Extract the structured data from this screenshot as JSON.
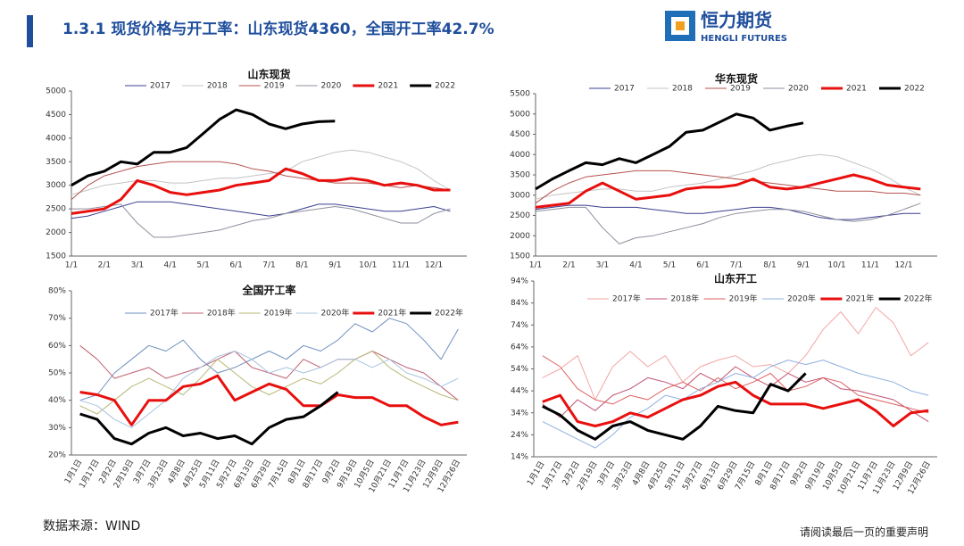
{
  "header": {
    "title": "1.3.1 现货价格与开工率：山东现货4360，全国开工率42.7%",
    "logo_cn": "恒力期货",
    "logo_en": "HENGLI FUTURES"
  },
  "footer": {
    "source": "数据来源：WIND",
    "disclaimer": "请阅读最后一页的重要声明"
  },
  "chart_data": [
    {
      "type": "line",
      "title": "山东现货",
      "categories": [
        "1/1",
        null,
        "2/1",
        null,
        "3/1",
        null,
        "4/1",
        null,
        "5/1",
        null,
        "6/1",
        null,
        "7/1",
        null,
        "8/1",
        null,
        "9/1",
        null,
        "10/1",
        null,
        "11/1",
        null,
        "12/1",
        null
      ],
      "ylim": [
        1500,
        5000
      ],
      "yticks": [
        1500,
        2000,
        2500,
        3000,
        3500,
        4000,
        4500,
        5000
      ],
      "series": [
        {
          "name": "2017",
          "color": "#3a3f8f",
          "line_width": 1,
          "values": [
            2300,
            2350,
            2450,
            2550,
            2650,
            2650,
            2650,
            2600,
            2550,
            2500,
            2450,
            2400,
            2350,
            2400,
            2500,
            2600,
            2600,
            2550,
            2500,
            2450,
            2450,
            2500,
            2550,
            2450
          ]
        },
        {
          "name": "2018",
          "color": "#c4c4c4",
          "line_width": 1,
          "values": [
            2800,
            2900,
            3000,
            3050,
            3100,
            3100,
            3050,
            3050,
            3100,
            3150,
            3150,
            3200,
            3250,
            3300,
            3500,
            3600,
            3700,
            3750,
            3700,
            3600,
            3500,
            3350,
            3100,
            2900
          ]
        },
        {
          "name": "2019",
          "color": "#b5534f",
          "line_width": 1,
          "values": [
            2700,
            3000,
            3200,
            3300,
            3400,
            3450,
            3500,
            3500,
            3500,
            3500,
            3450,
            3350,
            3300,
            3200,
            3150,
            3100,
            3050,
            3050,
            3050,
            3000,
            2950,
            3000,
            2950,
            2900
          ]
        },
        {
          "name": "2020",
          "color": "#8f8f9f",
          "line_width": 1,
          "values": [
            2500,
            2500,
            2550,
            2600,
            2200,
            1900,
            1900,
            1950,
            2000,
            2050,
            2150,
            2250,
            2300,
            2400,
            2450,
            2500,
            2550,
            2500,
            2400,
            2300,
            2200,
            2200,
            2400,
            2500
          ]
        },
        {
          "name": "2021",
          "color": "#e8100e",
          "line_width": 3,
          "values": [
            2400,
            2450,
            2500,
            2700,
            3100,
            3000,
            2850,
            2800,
            2850,
            2900,
            3000,
            3050,
            3100,
            3350,
            3250,
            3100,
            3100,
            3150,
            3100,
            3000,
            3050,
            3000,
            2900,
            2900
          ]
        },
        {
          "name": "2022",
          "color": "#000000",
          "line_width": 3,
          "values": [
            3000,
            3200,
            3300,
            3500,
            3450,
            3700,
            3700,
            3800,
            4100,
            4400,
            4600,
            4500,
            4300,
            4200,
            4300,
            4350,
            4360,
            null,
            null,
            null,
            null,
            null,
            null,
            null
          ]
        }
      ]
    },
    {
      "type": "line",
      "title": "华东现货",
      "categories": [
        "1/1",
        null,
        "2/1",
        null,
        "3/1",
        null,
        "4/1",
        null,
        "5/1",
        null,
        "6/1",
        null,
        "7/1",
        null,
        "8/1",
        null,
        "9/1",
        null,
        "10/1",
        null,
        "11/1",
        null,
        "12/1",
        null
      ],
      "ylim": [
        1500,
        5500
      ],
      "yticks": [
        1500,
        2000,
        2500,
        3000,
        3500,
        4000,
        4500,
        5000,
        5500
      ],
      "series": [
        {
          "name": "2017",
          "color": "#3a3f8f",
          "line_width": 1,
          "values": [
            2650,
            2700,
            2750,
            2750,
            2700,
            2700,
            2700,
            2650,
            2600,
            2550,
            2550,
            2600,
            2650,
            2700,
            2700,
            2650,
            2550,
            2450,
            2400,
            2400,
            2450,
            2500,
            2550,
            2550
          ]
        },
        {
          "name": "2018",
          "color": "#c4c4c4",
          "line_width": 1,
          "values": [
            2900,
            3000,
            3050,
            3100,
            3150,
            3150,
            3100,
            3100,
            3200,
            3250,
            3300,
            3400,
            3500,
            3600,
            3750,
            3850,
            3950,
            4000,
            3950,
            3800,
            3650,
            3450,
            3200,
            3000
          ]
        },
        {
          "name": "2019",
          "color": "#b5534f",
          "line_width": 1,
          "values": [
            2800,
            3100,
            3300,
            3450,
            3500,
            3550,
            3600,
            3600,
            3600,
            3550,
            3500,
            3450,
            3400,
            3350,
            3300,
            3250,
            3200,
            3150,
            3100,
            3100,
            3100,
            3050,
            3050,
            3000
          ]
        },
        {
          "name": "2020",
          "color": "#8f8f9f",
          "line_width": 1,
          "values": [
            2600,
            2650,
            2700,
            2700,
            2200,
            1800,
            1950,
            2000,
            2100,
            2200,
            2300,
            2450,
            2550,
            2600,
            2650,
            2650,
            2600,
            2500,
            2400,
            2350,
            2400,
            2500,
            2650,
            2800
          ]
        },
        {
          "name": "2021",
          "color": "#e8100e",
          "line_width": 3,
          "values": [
            2700,
            2750,
            2800,
            3100,
            3300,
            3100,
            2900,
            2950,
            3000,
            3150,
            3200,
            3200,
            3250,
            3400,
            3200,
            3150,
            3200,
            3300,
            3400,
            3500,
            3400,
            3250,
            3200,
            3150
          ]
        },
        {
          "name": "2022",
          "color": "#000000",
          "line_width": 3,
          "values": [
            3150,
            3400,
            3600,
            3800,
            3750,
            3900,
            3800,
            4000,
            4200,
            4550,
            4600,
            4800,
            5000,
            4900,
            4600,
            4700,
            4780,
            null,
            null,
            null,
            null,
            null,
            null,
            null
          ]
        }
      ]
    },
    {
      "type": "line",
      "title": "全国开工率",
      "categories": [
        "1月1日",
        "1月17日",
        "2月2日",
        "2月19日",
        "3月7日",
        "3月23日",
        "4月8日",
        "4月25日",
        "5月11日",
        "5月27日",
        "6月13日",
        "6月29日",
        "7月15日",
        "8月1日",
        "8月17日",
        "9月2日",
        "9月19日",
        "10月5日",
        "10月21日",
        "11月7日",
        "11月23日",
        "12月9日",
        "12月26日"
      ],
      "ylim": [
        20,
        80
      ],
      "yticks": [
        {
          "value": 20,
          "label": "20%"
        },
        {
          "value": 30,
          "label": "30%"
        },
        {
          "value": 40,
          "label": "40%"
        },
        {
          "value": 50,
          "label": "50%"
        },
        {
          "value": 60,
          "label": "60%"
        },
        {
          "value": 70,
          "label": "70%"
        },
        {
          "value": 80,
          "label": "80%"
        }
      ],
      "series": [
        {
          "name": "2017年",
          "color": "#6f8fc0",
          "line_width": 1,
          "values": [
            40,
            42,
            50,
            55,
            60,
            58,
            62,
            55,
            50,
            52,
            55,
            58,
            55,
            60,
            58,
            62,
            68,
            65,
            70,
            68,
            62,
            55,
            66
          ]
        },
        {
          "name": "2018年",
          "color": "#c06070",
          "line_width": 1,
          "values": [
            60,
            55,
            48,
            50,
            52,
            48,
            50,
            52,
            55,
            58,
            52,
            50,
            48,
            55,
            52,
            55,
            55,
            58,
            55,
            52,
            50,
            45,
            40
          ]
        },
        {
          "name": "2019年",
          "color": "#b8b878",
          "line_width": 1,
          "values": [
            38,
            35,
            40,
            45,
            48,
            45,
            42,
            48,
            55,
            50,
            45,
            42,
            45,
            48,
            46,
            50,
            55,
            58,
            52,
            48,
            45,
            42,
            40
          ]
        },
        {
          "name": "2020年",
          "color": "#a8c4e0",
          "line_width": 1,
          "values": [
            40,
            38,
            33,
            30,
            35,
            40,
            48,
            52,
            56,
            58,
            55,
            50,
            52,
            50,
            52,
            55,
            55,
            52,
            55,
            50,
            48,
            45,
            48
          ]
        },
        {
          "name": "2021年",
          "color": "#e8100e",
          "line_width": 3,
          "values": [
            43,
            42,
            40,
            31,
            40,
            40,
            45,
            46,
            49,
            40,
            43,
            46,
            44,
            38,
            38,
            42,
            41,
            41,
            38,
            38,
            34,
            31,
            32
          ]
        },
        {
          "name": "2022年",
          "color": "#000000",
          "line_width": 3,
          "values": [
            35,
            33,
            26,
            24,
            28,
            30,
            27,
            28,
            26,
            27,
            24,
            30,
            33,
            34,
            38,
            43,
            null,
            null,
            null,
            null,
            null,
            null,
            null
          ]
        }
      ]
    },
    {
      "type": "line",
      "title": "山东开工",
      "categories": [
        "1月1日",
        "1月17日",
        "2月2日",
        "2月19日",
        "3月7日",
        "3月23日",
        "4月8日",
        "4月25日",
        "5月11日",
        "5月27日",
        "6月13日",
        "6月29日",
        "7月15日",
        "8月1日",
        "8月17日",
        "9月2日",
        "9月19日",
        "10月5日",
        "10月21日",
        "11月7日",
        "11月23日",
        "12月9日",
        "12月26日"
      ],
      "ylim": [
        14,
        94
      ],
      "yticks": [
        {
          "value": 14,
          "label": "14%"
        },
        {
          "value": 24,
          "label": "24%"
        },
        {
          "value": 34,
          "label": "34%"
        },
        {
          "value": 44,
          "label": "44%"
        },
        {
          "value": 54,
          "label": "54%"
        },
        {
          "value": 64,
          "label": "64%"
        },
        {
          "value": 74,
          "label": "74%"
        },
        {
          "value": 84,
          "label": "84%"
        },
        {
          "value": 94,
          "label": "94%"
        }
      ],
      "series": [
        {
          "name": "2017年",
          "color": "#f2a6a6",
          "line_width": 1,
          "values": [
            50,
            54,
            60,
            40,
            55,
            62,
            55,
            60,
            48,
            55,
            58,
            60,
            55,
            56,
            52,
            60,
            72,
            80,
            70,
            82,
            75,
            60,
            66
          ]
        },
        {
          "name": "2018年",
          "color": "#c05070",
          "line_width": 1,
          "values": [
            38,
            32,
            40,
            35,
            42,
            45,
            50,
            48,
            45,
            52,
            48,
            55,
            50,
            46,
            52,
            48,
            50,
            45,
            44,
            42,
            40,
            35,
            30
          ]
        },
        {
          "name": "2019年",
          "color": "#e06060",
          "line_width": 1,
          "values": [
            60,
            55,
            45,
            40,
            38,
            42,
            40,
            45,
            48,
            44,
            50,
            45,
            48,
            52,
            44,
            46,
            50,
            48,
            42,
            40,
            38,
            36,
            34
          ]
        },
        {
          "name": "2020年",
          "color": "#90b0e0",
          "line_width": 1,
          "values": [
            30,
            26,
            22,
            18,
            24,
            32,
            36,
            42,
            40,
            45,
            48,
            52,
            50,
            55,
            58,
            56,
            58,
            55,
            52,
            50,
            48,
            44,
            42
          ]
        },
        {
          "name": "2021年",
          "color": "#e8100e",
          "line_width": 3,
          "values": [
            39,
            42,
            30,
            28,
            30,
            34,
            32,
            36,
            40,
            42,
            46,
            48,
            42,
            38,
            38,
            38,
            36,
            38,
            40,
            35,
            28,
            34,
            35
          ]
        },
        {
          "name": "2022年",
          "color": "#000000",
          "line_width": 3,
          "values": [
            37,
            33,
            26,
            22,
            28,
            30,
            26,
            24,
            22,
            28,
            37,
            35,
            34,
            47,
            44,
            52,
            null,
            null,
            null,
            null,
            null,
            null,
            null
          ]
        }
      ]
    }
  ]
}
